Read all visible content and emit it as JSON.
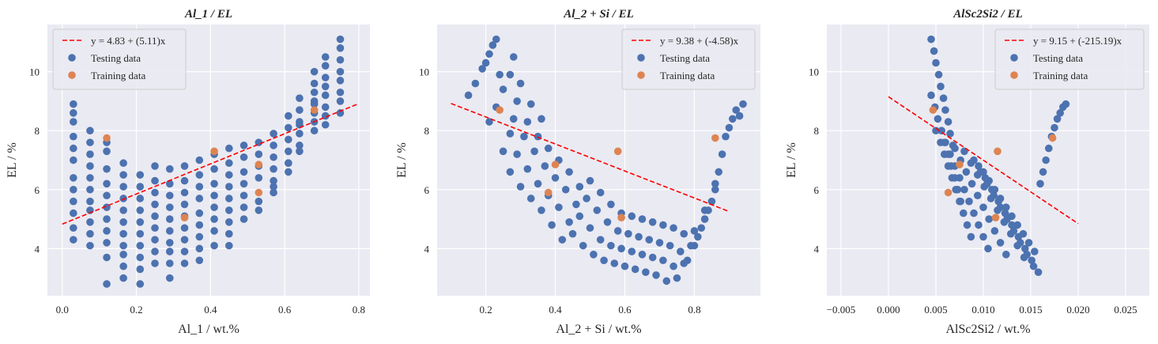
{
  "colors": {
    "panel_bg": "#EAEAF2",
    "grid": "#FFFFFF",
    "testing": "#4C72B0",
    "training": "#DD8452",
    "fit_line": "#FF0000",
    "text": "#262626"
  },
  "chart_data": [
    {
      "type": "scatter",
      "title": "Al_1 / EL",
      "xlabel": "Al_1 / wt.%",
      "ylabel": "EL / %",
      "xlim": [
        -0.04,
        0.83
      ],
      "ylim": [
        2.4,
        11.6
      ],
      "xticks": [
        0.0,
        0.2,
        0.4,
        0.6,
        0.8
      ],
      "xtick_labels": [
        "0.0",
        "0.2",
        "0.4",
        "0.6",
        "0.8"
      ],
      "yticks": [
        4,
        6,
        8,
        10
      ],
      "ytick_labels": [
        "4",
        "6",
        "8",
        "10"
      ],
      "grid": true,
      "legend_position": "upper left",
      "legend": [
        "y = 4.83 + (5.11)x",
        "Testing data",
        "Training data"
      ],
      "fit_line": {
        "intercept": 4.83,
        "slope": 5.11,
        "x_range": [
          0.0,
          0.8
        ]
      },
      "testing_data": {
        "x": [
          0.03,
          0.03,
          0.03,
          0.03,
          0.03,
          0.03,
          0.03,
          0.03,
          0.03,
          0.03,
          0.03,
          0.03,
          0.075,
          0.075,
          0.075,
          0.075,
          0.075,
          0.075,
          0.075,
          0.075,
          0.075,
          0.075,
          0.075,
          0.12,
          0.12,
          0.12,
          0.12,
          0.12,
          0.12,
          0.12,
          0.12,
          0.12,
          0.12,
          0.12,
          0.165,
          0.165,
          0.165,
          0.165,
          0.165,
          0.165,
          0.165,
          0.165,
          0.165,
          0.165,
          0.165,
          0.21,
          0.21,
          0.21,
          0.21,
          0.21,
          0.21,
          0.21,
          0.21,
          0.21,
          0.21,
          0.25,
          0.25,
          0.25,
          0.25,
          0.25,
          0.25,
          0.25,
          0.25,
          0.25,
          0.29,
          0.29,
          0.29,
          0.29,
          0.29,
          0.29,
          0.29,
          0.29,
          0.29,
          0.29,
          0.33,
          0.33,
          0.33,
          0.33,
          0.33,
          0.33,
          0.33,
          0.33,
          0.33,
          0.37,
          0.37,
          0.37,
          0.37,
          0.37,
          0.37,
          0.37,
          0.37,
          0.37,
          0.41,
          0.41,
          0.41,
          0.41,
          0.41,
          0.41,
          0.41,
          0.41,
          0.45,
          0.45,
          0.45,
          0.45,
          0.45,
          0.45,
          0.45,
          0.45,
          0.45,
          0.49,
          0.49,
          0.49,
          0.49,
          0.49,
          0.49,
          0.49,
          0.53,
          0.53,
          0.53,
          0.53,
          0.53,
          0.53,
          0.57,
          0.57,
          0.57,
          0.57,
          0.57,
          0.57,
          0.57,
          0.61,
          0.61,
          0.61,
          0.61,
          0.61,
          0.61,
          0.61,
          0.64,
          0.64,
          0.64,
          0.64,
          0.64,
          0.64,
          0.64,
          0.68,
          0.68,
          0.68,
          0.68,
          0.68,
          0.68,
          0.68,
          0.68,
          0.71,
          0.71,
          0.71,
          0.71,
          0.71,
          0.71,
          0.71,
          0.71,
          0.75,
          0.75,
          0.75,
          0.75,
          0.75,
          0.75,
          0.75,
          0.75
        ],
        "y": [
          8.9,
          8.6,
          8.3,
          7.8,
          7.4,
          7.0,
          6.4,
          6.0,
          5.6,
          5.2,
          4.7,
          4.3,
          8.0,
          7.6,
          7.2,
          6.8,
          6.4,
          6.0,
          5.6,
          5.3,
          4.9,
          4.5,
          4.1,
          7.6,
          7.3,
          6.7,
          6.2,
          5.8,
          5.4,
          5.0,
          4.6,
          4.2,
          3.7,
          2.8,
          6.9,
          6.5,
          6.1,
          5.7,
          5.3,
          4.9,
          4.5,
          4.1,
          3.8,
          3.4,
          3.0,
          6.5,
          6.1,
          5.7,
          5.3,
          4.9,
          4.5,
          4.1,
          3.7,
          3.3,
          2.8,
          6.8,
          6.3,
          5.9,
          5.5,
          5.1,
          4.7,
          4.3,
          3.9,
          3.5,
          6.7,
          6.2,
          5.8,
          5.4,
          5.0,
          4.6,
          4.2,
          3.9,
          3.5,
          3.0,
          6.8,
          6.3,
          5.9,
          5.5,
          5.1,
          4.7,
          4.3,
          3.9,
          3.5,
          7.0,
          6.5,
          6.1,
          5.7,
          5.2,
          4.8,
          4.4,
          4.0,
          3.6,
          7.2,
          6.7,
          6.2,
          5.8,
          5.4,
          5.0,
          4.6,
          4.1,
          7.4,
          6.9,
          6.5,
          6.1,
          5.7,
          5.3,
          4.9,
          4.5,
          4.1,
          7.5,
          7.1,
          6.6,
          6.2,
          5.8,
          5.4,
          5.0,
          7.6,
          7.2,
          6.8,
          6.4,
          5.6,
          5.3,
          7.9,
          7.5,
          7.1,
          6.7,
          6.3,
          5.9,
          6.1,
          8.5,
          8.1,
          7.7,
          7.3,
          6.9,
          6.6,
          6.9,
          9.1,
          8.7,
          8.3,
          7.9,
          7.5,
          8.2,
          7.3,
          9.6,
          9.3,
          9.0,
          8.6,
          8.3,
          8.0,
          10.0,
          8.9,
          10.5,
          10.2,
          9.8,
          9.5,
          9.2,
          8.8,
          8.5,
          8.2,
          11.1,
          10.8,
          10.4,
          10.0,
          9.7,
          9.3,
          9.0,
          8.6
        ]
      },
      "training_data": {
        "x": [
          0.12,
          0.33,
          0.41,
          0.53,
          0.53,
          0.68
        ],
        "y": [
          7.75,
          5.05,
          7.3,
          6.85,
          5.9,
          8.7
        ]
      }
    },
    {
      "type": "scatter",
      "title": "Al_2 + Si / EL",
      "xlabel": "Al_2 + Si / wt.%",
      "ylabel": "EL / %",
      "xlim": [
        0.06,
        0.99
      ],
      "ylim": [
        2.4,
        11.6
      ],
      "xticks": [
        0.2,
        0.4,
        0.6,
        0.8
      ],
      "xtick_labels": [
        "0.2",
        "0.4",
        "0.6",
        "0.8"
      ],
      "yticks": [
        4,
        6,
        8,
        10
      ],
      "ytick_labels": [
        "4",
        "6",
        "8",
        "10"
      ],
      "grid": true,
      "legend_position": "upper right",
      "legend": [
        "y = 9.38 + (-4.58)x",
        "Testing data",
        "Training data"
      ],
      "fit_line": {
        "intercept": 9.38,
        "slope": -4.58,
        "x_range": [
          0.1,
          0.9
        ]
      },
      "testing_data": {
        "x": [
          0.15,
          0.17,
          0.19,
          0.2,
          0.21,
          0.22,
          0.23,
          0.24,
          0.21,
          0.23,
          0.25,
          0.27,
          0.28,
          0.25,
          0.27,
          0.28,
          0.29,
          0.3,
          0.27,
          0.29,
          0.31,
          0.32,
          0.33,
          0.3,
          0.32,
          0.34,
          0.35,
          0.36,
          0.33,
          0.35,
          0.37,
          0.38,
          0.36,
          0.38,
          0.4,
          0.41,
          0.39,
          0.41,
          0.43,
          0.44,
          0.42,
          0.44,
          0.46,
          0.47,
          0.45,
          0.47,
          0.49,
          0.5,
          0.48,
          0.5,
          0.52,
          0.53,
          0.51,
          0.53,
          0.55,
          0.56,
          0.54,
          0.56,
          0.58,
          0.59,
          0.57,
          0.59,
          0.61,
          0.62,
          0.6,
          0.62,
          0.64,
          0.65,
          0.63,
          0.65,
          0.67,
          0.68,
          0.66,
          0.68,
          0.7,
          0.71,
          0.69,
          0.71,
          0.73,
          0.74,
          0.72,
          0.74,
          0.76,
          0.77,
          0.75,
          0.77,
          0.79,
          0.8,
          0.78,
          0.8,
          0.82,
          0.83,
          0.81,
          0.83,
          0.85,
          0.86,
          0.84,
          0.86,
          0.87,
          0.88,
          0.89,
          0.9,
          0.91,
          0.92,
          0.93,
          0.94
        ],
        "y": [
          9.2,
          9.6,
          10.1,
          10.3,
          10.6,
          10.9,
          11.1,
          9.9,
          8.3,
          8.8,
          9.4,
          9.9,
          10.5,
          7.3,
          7.9,
          8.4,
          9.0,
          9.6,
          6.6,
          7.2,
          7.8,
          8.3,
          8.9,
          6.1,
          6.7,
          7.3,
          7.8,
          8.4,
          5.7,
          6.2,
          6.8,
          7.4,
          5.3,
          5.8,
          6.4,
          7.0,
          4.8,
          5.4,
          6.0,
          6.6,
          4.3,
          4.9,
          5.5,
          6.1,
          4.5,
          5.1,
          5.7,
          6.3,
          4.1,
          4.7,
          5.3,
          5.9,
          3.8,
          4.3,
          4.9,
          5.5,
          3.6,
          4.1,
          4.6,
          5.2,
          3.5,
          4.0,
          4.5,
          5.1,
          3.4,
          3.9,
          4.4,
          5.0,
          3.3,
          3.8,
          4.3,
          4.9,
          3.2,
          3.7,
          4.2,
          4.8,
          3.1,
          3.6,
          4.1,
          4.7,
          2.9,
          3.4,
          3.9,
          4.5,
          3.0,
          3.5,
          4.1,
          4.6,
          3.6,
          4.1,
          4.7,
          5.3,
          4.4,
          5.0,
          5.6,
          6.2,
          5.3,
          6.0,
          6.6,
          7.2,
          7.8,
          8.1,
          8.4,
          8.7,
          8.5,
          8.9
        ]
      },
      "training_data": {
        "x": [
          0.24,
          0.38,
          0.4,
          0.58,
          0.59,
          0.86
        ],
        "y": [
          8.7,
          5.9,
          6.85,
          7.3,
          5.05,
          7.75
        ]
      }
    },
    {
      "type": "scatter",
      "title": "AlSc2Si2 / EL",
      "xlabel": "AlSc2Si2 / wt.%",
      "ylabel": "EL / %",
      "xlim": [
        -0.0065,
        0.0275
      ],
      "ylim": [
        2.4,
        11.6
      ],
      "xticks": [
        -0.005,
        0.0,
        0.005,
        0.01,
        0.015,
        0.02,
        0.025
      ],
      "xtick_labels": [
        "−0.005",
        "0.000",
        "0.005",
        "0.010",
        "0.015",
        "0.020",
        "0.025"
      ],
      "yticks": [
        4,
        6,
        8,
        10
      ],
      "ytick_labels": [
        "4",
        "6",
        "8",
        "10"
      ],
      "grid": true,
      "legend_position": "upper right",
      "legend": [
        "y = 9.15 + (-215.19)x",
        "Testing data",
        "Training data"
      ],
      "fit_line": {
        "intercept": 9.15,
        "slope": -215.19,
        "x_range": [
          0.0,
          0.02
        ]
      },
      "testing_data": {
        "x": [
          0.0045,
          0.0048,
          0.005,
          0.0053,
          0.0055,
          0.0058,
          0.006,
          0.0063,
          0.0065,
          0.0068,
          0.0045,
          0.0049,
          0.0052,
          0.0056,
          0.0059,
          0.0063,
          0.0066,
          0.007,
          0.0073,
          0.0076,
          0.005,
          0.0055,
          0.0059,
          0.0063,
          0.0067,
          0.0071,
          0.0075,
          0.0079,
          0.0083,
          0.0087,
          0.006,
          0.0065,
          0.007,
          0.0075,
          0.008,
          0.0085,
          0.009,
          0.0095,
          0.01,
          0.0105,
          0.007,
          0.0076,
          0.0082,
          0.0088,
          0.0094,
          0.01,
          0.0106,
          0.0112,
          0.0118,
          0.0124,
          0.008,
          0.0087,
          0.0094,
          0.0101,
          0.0108,
          0.0115,
          0.0122,
          0.0129,
          0.0136,
          0.0143,
          0.009,
          0.0097,
          0.0104,
          0.0111,
          0.0118,
          0.0125,
          0.0132,
          0.0139,
          0.0146,
          0.0153,
          0.0095,
          0.0102,
          0.0109,
          0.0116,
          0.0123,
          0.013,
          0.0137,
          0.0144,
          0.0151,
          0.0158,
          0.01,
          0.0106,
          0.0112,
          0.0118,
          0.0124,
          0.013,
          0.0136,
          0.0142,
          0.0148,
          0.0154,
          0.016,
          0.0163,
          0.0166,
          0.0169,
          0.0172,
          0.0175,
          0.0178,
          0.0181,
          0.0184,
          0.0187
        ],
        "y": [
          11.1,
          10.7,
          10.3,
          9.9,
          9.5,
          9.1,
          8.7,
          8.3,
          7.9,
          7.5,
          9.2,
          8.8,
          8.4,
          8.0,
          7.6,
          7.2,
          6.8,
          6.4,
          6.0,
          5.6,
          8.0,
          7.6,
          7.2,
          6.8,
          6.4,
          6.0,
          5.6,
          5.2,
          4.8,
          4.4,
          7.6,
          7.2,
          6.8,
          6.4,
          6.0,
          5.6,
          5.2,
          4.8,
          4.4,
          4.0,
          7.4,
          7.0,
          6.6,
          6.2,
          5.8,
          5.4,
          5.0,
          4.6,
          4.2,
          3.8,
          7.3,
          6.9,
          6.5,
          6.1,
          5.7,
          5.3,
          4.9,
          4.5,
          4.1,
          3.7,
          7.0,
          6.6,
          6.2,
          5.8,
          5.4,
          5.0,
          4.6,
          4.2,
          3.8,
          3.4,
          6.8,
          6.4,
          6.0,
          5.6,
          5.2,
          4.8,
          4.4,
          4.0,
          3.6,
          3.2,
          6.6,
          6.3,
          6.0,
          5.7,
          5.4,
          5.1,
          4.8,
          4.5,
          4.2,
          3.9,
          6.2,
          6.6,
          7.0,
          7.4,
          7.8,
          8.1,
          8.4,
          8.6,
          8.8,
          8.9
        ]
      },
      "training_data": {
        "x": [
          0.0047,
          0.0063,
          0.0075,
          0.0113,
          0.0115,
          0.0173
        ],
        "y": [
          8.7,
          5.9,
          6.85,
          5.05,
          7.3,
          7.75
        ]
      }
    }
  ]
}
